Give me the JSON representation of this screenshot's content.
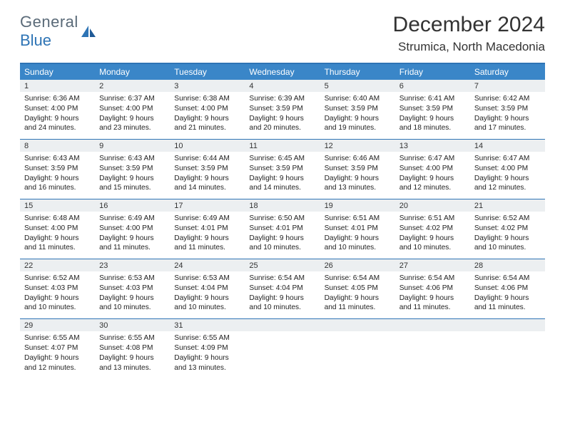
{
  "logo": {
    "top": "General",
    "bottom": "Blue"
  },
  "title": "December 2024",
  "location": "Strumica, North Macedonia",
  "colors": {
    "header_bg": "#3a86c8",
    "border": "#2e74b5",
    "daynum_bg": "#eceff1",
    "logo_gray": "#5a6a78",
    "logo_blue": "#2e74b5"
  },
  "day_labels": [
    "Sunday",
    "Monday",
    "Tuesday",
    "Wednesday",
    "Thursday",
    "Friday",
    "Saturday"
  ],
  "weeks": [
    {
      "nums": [
        "1",
        "2",
        "3",
        "4",
        "5",
        "6",
        "7"
      ],
      "cells": [
        {
          "sunrise": "Sunrise: 6:36 AM",
          "sunset": "Sunset: 4:00 PM",
          "d1": "Daylight: 9 hours",
          "d2": "and 24 minutes."
        },
        {
          "sunrise": "Sunrise: 6:37 AM",
          "sunset": "Sunset: 4:00 PM",
          "d1": "Daylight: 9 hours",
          "d2": "and 23 minutes."
        },
        {
          "sunrise": "Sunrise: 6:38 AM",
          "sunset": "Sunset: 4:00 PM",
          "d1": "Daylight: 9 hours",
          "d2": "and 21 minutes."
        },
        {
          "sunrise": "Sunrise: 6:39 AM",
          "sunset": "Sunset: 3:59 PM",
          "d1": "Daylight: 9 hours",
          "d2": "and 20 minutes."
        },
        {
          "sunrise": "Sunrise: 6:40 AM",
          "sunset": "Sunset: 3:59 PM",
          "d1": "Daylight: 9 hours",
          "d2": "and 19 minutes."
        },
        {
          "sunrise": "Sunrise: 6:41 AM",
          "sunset": "Sunset: 3:59 PM",
          "d1": "Daylight: 9 hours",
          "d2": "and 18 minutes."
        },
        {
          "sunrise": "Sunrise: 6:42 AM",
          "sunset": "Sunset: 3:59 PM",
          "d1": "Daylight: 9 hours",
          "d2": "and 17 minutes."
        }
      ]
    },
    {
      "nums": [
        "8",
        "9",
        "10",
        "11",
        "12",
        "13",
        "14"
      ],
      "cells": [
        {
          "sunrise": "Sunrise: 6:43 AM",
          "sunset": "Sunset: 3:59 PM",
          "d1": "Daylight: 9 hours",
          "d2": "and 16 minutes."
        },
        {
          "sunrise": "Sunrise: 6:43 AM",
          "sunset": "Sunset: 3:59 PM",
          "d1": "Daylight: 9 hours",
          "d2": "and 15 minutes."
        },
        {
          "sunrise": "Sunrise: 6:44 AM",
          "sunset": "Sunset: 3:59 PM",
          "d1": "Daylight: 9 hours",
          "d2": "and 14 minutes."
        },
        {
          "sunrise": "Sunrise: 6:45 AM",
          "sunset": "Sunset: 3:59 PM",
          "d1": "Daylight: 9 hours",
          "d2": "and 14 minutes."
        },
        {
          "sunrise": "Sunrise: 6:46 AM",
          "sunset": "Sunset: 3:59 PM",
          "d1": "Daylight: 9 hours",
          "d2": "and 13 minutes."
        },
        {
          "sunrise": "Sunrise: 6:47 AM",
          "sunset": "Sunset: 4:00 PM",
          "d1": "Daylight: 9 hours",
          "d2": "and 12 minutes."
        },
        {
          "sunrise": "Sunrise: 6:47 AM",
          "sunset": "Sunset: 4:00 PM",
          "d1": "Daylight: 9 hours",
          "d2": "and 12 minutes."
        }
      ]
    },
    {
      "nums": [
        "15",
        "16",
        "17",
        "18",
        "19",
        "20",
        "21"
      ],
      "cells": [
        {
          "sunrise": "Sunrise: 6:48 AM",
          "sunset": "Sunset: 4:00 PM",
          "d1": "Daylight: 9 hours",
          "d2": "and 11 minutes."
        },
        {
          "sunrise": "Sunrise: 6:49 AM",
          "sunset": "Sunset: 4:00 PM",
          "d1": "Daylight: 9 hours",
          "d2": "and 11 minutes."
        },
        {
          "sunrise": "Sunrise: 6:49 AM",
          "sunset": "Sunset: 4:01 PM",
          "d1": "Daylight: 9 hours",
          "d2": "and 11 minutes."
        },
        {
          "sunrise": "Sunrise: 6:50 AM",
          "sunset": "Sunset: 4:01 PM",
          "d1": "Daylight: 9 hours",
          "d2": "and 10 minutes."
        },
        {
          "sunrise": "Sunrise: 6:51 AM",
          "sunset": "Sunset: 4:01 PM",
          "d1": "Daylight: 9 hours",
          "d2": "and 10 minutes."
        },
        {
          "sunrise": "Sunrise: 6:51 AM",
          "sunset": "Sunset: 4:02 PM",
          "d1": "Daylight: 9 hours",
          "d2": "and 10 minutes."
        },
        {
          "sunrise": "Sunrise: 6:52 AM",
          "sunset": "Sunset: 4:02 PM",
          "d1": "Daylight: 9 hours",
          "d2": "and 10 minutes."
        }
      ]
    },
    {
      "nums": [
        "22",
        "23",
        "24",
        "25",
        "26",
        "27",
        "28"
      ],
      "cells": [
        {
          "sunrise": "Sunrise: 6:52 AM",
          "sunset": "Sunset: 4:03 PM",
          "d1": "Daylight: 9 hours",
          "d2": "and 10 minutes."
        },
        {
          "sunrise": "Sunrise: 6:53 AM",
          "sunset": "Sunset: 4:03 PM",
          "d1": "Daylight: 9 hours",
          "d2": "and 10 minutes."
        },
        {
          "sunrise": "Sunrise: 6:53 AM",
          "sunset": "Sunset: 4:04 PM",
          "d1": "Daylight: 9 hours",
          "d2": "and 10 minutes."
        },
        {
          "sunrise": "Sunrise: 6:54 AM",
          "sunset": "Sunset: 4:04 PM",
          "d1": "Daylight: 9 hours",
          "d2": "and 10 minutes."
        },
        {
          "sunrise": "Sunrise: 6:54 AM",
          "sunset": "Sunset: 4:05 PM",
          "d1": "Daylight: 9 hours",
          "d2": "and 11 minutes."
        },
        {
          "sunrise": "Sunrise: 6:54 AM",
          "sunset": "Sunset: 4:06 PM",
          "d1": "Daylight: 9 hours",
          "d2": "and 11 minutes."
        },
        {
          "sunrise": "Sunrise: 6:54 AM",
          "sunset": "Sunset: 4:06 PM",
          "d1": "Daylight: 9 hours",
          "d2": "and 11 minutes."
        }
      ]
    },
    {
      "nums": [
        "29",
        "30",
        "31",
        "",
        "",
        "",
        ""
      ],
      "cells": [
        {
          "sunrise": "Sunrise: 6:55 AM",
          "sunset": "Sunset: 4:07 PM",
          "d1": "Daylight: 9 hours",
          "d2": "and 12 minutes."
        },
        {
          "sunrise": "Sunrise: 6:55 AM",
          "sunset": "Sunset: 4:08 PM",
          "d1": "Daylight: 9 hours",
          "d2": "and 13 minutes."
        },
        {
          "sunrise": "Sunrise: 6:55 AM",
          "sunset": "Sunset: 4:09 PM",
          "d1": "Daylight: 9 hours",
          "d2": "and 13 minutes."
        },
        null,
        null,
        null,
        null
      ]
    }
  ]
}
